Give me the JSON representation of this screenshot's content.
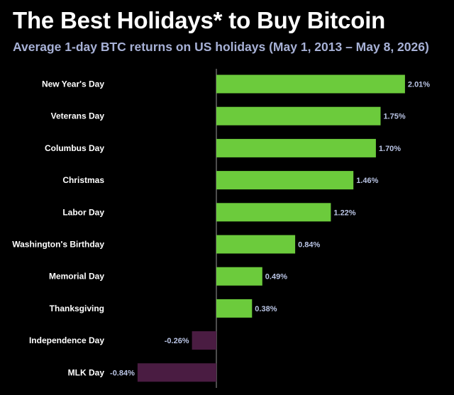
{
  "header": {
    "title": "The Best Holidays* to Buy Bitcoin",
    "subtitle": "Average 1-day BTC returns on US holidays (May 1, 2013 – May 8, 2026)"
  },
  "colors": {
    "positive_bar": "#6ccb3c",
    "negative_bar": "#4a1c42",
    "baseline": "#9a9a9a",
    "value_label": "#b9c4e4"
  },
  "chart_data": {
    "type": "bar",
    "orientation": "horizontal",
    "title": "The Best Holidays* to Buy Bitcoin",
    "subtitle": "Average 1-day BTC returns on US holidays (May 1, 2013 – May 8, 2026)",
    "categories": [
      "New Year's Day",
      "Veterans Day",
      "Columbus Day",
      "Christmas",
      "Labor Day",
      "Washington's Birthday",
      "Memorial Day",
      "Thanksgiving",
      "Independence Day",
      "MLK Day"
    ],
    "values": [
      2.01,
      1.75,
      1.7,
      1.46,
      1.22,
      0.84,
      0.49,
      0.38,
      -0.26,
      -0.84
    ],
    "value_labels": [
      "2.01%",
      "1.75%",
      "1.70%",
      "1.46%",
      "1.22%",
      "0.84%",
      "0.49%",
      "0.38%",
      "-0.26%",
      "-0.84%"
    ],
    "unit": "%",
    "xlim": [
      -0.84,
      2.01
    ],
    "grid": false,
    "legend": "none"
  }
}
